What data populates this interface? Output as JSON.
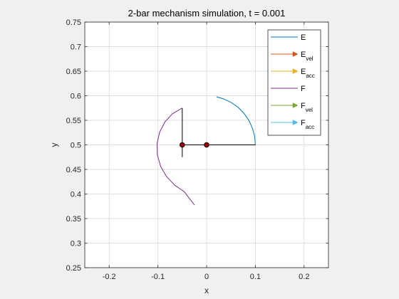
{
  "chart_data": {
    "type": "line",
    "title": "2-bar mechanism simulation, t = 0.001",
    "xlabel": "x",
    "ylabel": "y",
    "xlim": [
      -0.25,
      0.25
    ],
    "ylim": [
      0.25,
      0.75
    ],
    "xticks": [
      -0.2,
      -0.1,
      0,
      0.1,
      0.2
    ],
    "xtick_labels": [
      "-0.2",
      "-0.1",
      "0",
      "0.1",
      "0.2"
    ],
    "yticks": [
      0.25,
      0.3,
      0.35,
      0.4,
      0.45,
      0.5,
      0.55,
      0.6,
      0.65,
      0.7,
      0.75
    ],
    "ytick_labels": [
      "0.25",
      "0.3",
      "0.35",
      "0.4",
      "0.45",
      "0.5",
      "0.55",
      "0.6",
      "0.65",
      "0.7",
      "0.75"
    ],
    "grid": true,
    "legend_placement": "top-right",
    "series": [
      {
        "name": "E",
        "sub": "",
        "kind": "line",
        "color": "#0072bd",
        "x": [
          0.1,
          0.0985,
          0.0939,
          0.0866,
          0.0766,
          0.0643,
          0.05,
          0.0342,
          0.02
        ],
        "y": [
          0.5,
          0.5174,
          0.5342,
          0.55,
          0.5643,
          0.5766,
          0.5866,
          0.5939,
          0.598
        ]
      },
      {
        "name": "E",
        "sub": "vel",
        "kind": "arrow",
        "color": "#d95319"
      },
      {
        "name": "E",
        "sub": "acc",
        "kind": "arrow",
        "color": "#edb120"
      },
      {
        "name": "F",
        "sub": "",
        "kind": "line",
        "color": "#7e2f8e",
        "x": [
          -0.05,
          -0.0701,
          -0.0855,
          -0.0963,
          -0.1016,
          -0.1011,
          -0.0944,
          -0.0822,
          -0.0654,
          -0.0459,
          -0.025
        ],
        "y": [
          0.575,
          0.5633,
          0.5468,
          0.5263,
          0.5034,
          0.4795,
          0.4563,
          0.4354,
          0.4178,
          0.4047,
          0.3777
        ]
      },
      {
        "name": "F",
        "sub": "vel",
        "kind": "arrow",
        "color": "#77ac30"
      },
      {
        "name": "F",
        "sub": "acc",
        "kind": "arrow",
        "color": "#4dbeee"
      }
    ],
    "bars": [
      {
        "x": [
          -0.05,
          0.1
        ],
        "y": [
          0.5,
          0.5
        ],
        "color": "#000000"
      },
      {
        "x": [
          -0.05,
          -0.05
        ],
        "y": [
          0.475,
          0.575
        ],
        "color": "#000000"
      }
    ],
    "joints": [
      {
        "x": -0.05,
        "y": 0.5
      },
      {
        "x": 0.0,
        "y": 0.5
      }
    ]
  }
}
